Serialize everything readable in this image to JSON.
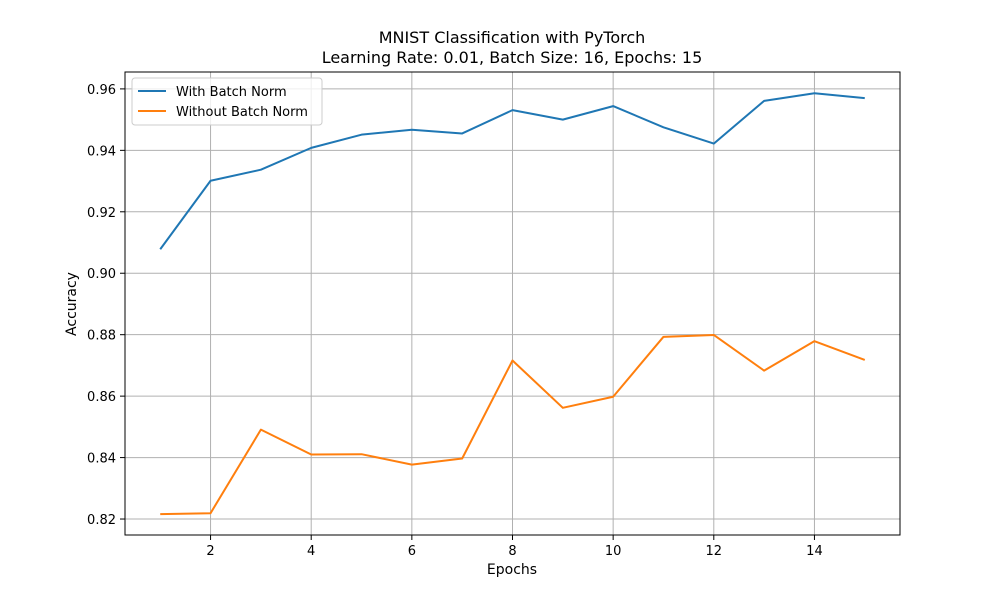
{
  "chart_data": {
    "type": "line",
    "title_lines": [
      "MNIST Classification with PyTorch",
      "Learning Rate: 0.01, Batch Size: 16, Epochs: 15"
    ],
    "xlabel": "Epochs",
    "ylabel": "Accuracy",
    "x": [
      1,
      2,
      3,
      4,
      5,
      6,
      7,
      8,
      9,
      10,
      11,
      12,
      13,
      14,
      15
    ],
    "xlim": [
      0.3,
      15.7
    ],
    "ylim": [
      0.8148,
      0.9655
    ],
    "xticks": [
      2,
      4,
      6,
      8,
      10,
      12,
      14
    ],
    "yticks": [
      0.82,
      0.84,
      0.86,
      0.88,
      0.9,
      0.92,
      0.94,
      0.96
    ],
    "ytick_labels": [
      "0.82",
      "0.84",
      "0.86",
      "0.88",
      "0.90",
      "0.92",
      "0.94",
      "0.96"
    ],
    "grid": true,
    "legend_position": "upper-left",
    "series": [
      {
        "name": "With Batch Norm",
        "color": "#1f77b4",
        "values": [
          0.9078,
          0.9301,
          0.9337,
          0.9408,
          0.9451,
          0.9467,
          0.9455,
          0.9531,
          0.95,
          0.9544,
          0.9475,
          0.9422,
          0.9561,
          0.9586,
          0.957
        ]
      },
      {
        "name": "Without Batch Norm",
        "color": "#ff7f0e",
        "values": [
          0.8216,
          0.8219,
          0.8491,
          0.841,
          0.8411,
          0.8377,
          0.8397,
          0.8716,
          0.8562,
          0.8598,
          0.8793,
          0.8799,
          0.8683,
          0.8779,
          0.8718
        ]
      }
    ]
  }
}
